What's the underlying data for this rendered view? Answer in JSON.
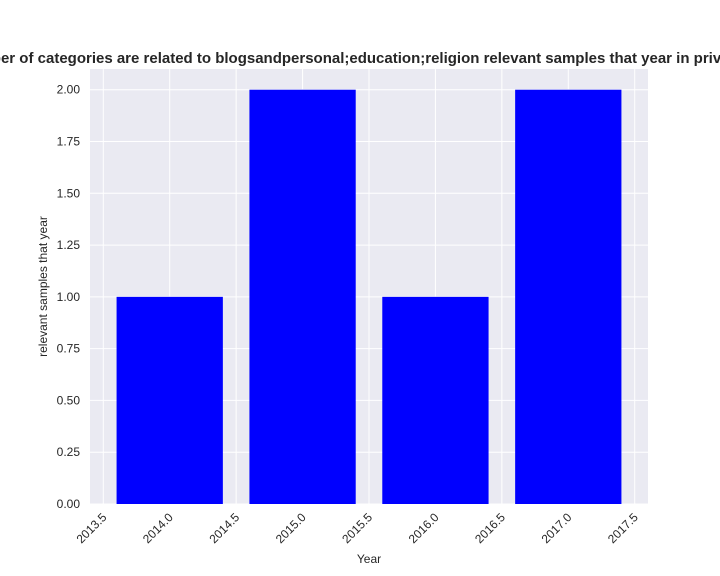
{
  "chart_data": {
    "type": "bar",
    "title": "Number of categories are related to blogsandpersonal;education;religion relevant samples that year in privacy p",
    "xlabel": "Year",
    "ylabel": "relevant samples that year",
    "x": [
      2014,
      2015,
      2016,
      2017
    ],
    "values": [
      1,
      2,
      1,
      2
    ],
    "bar_width": 0.8,
    "xlim": [
      2013.4,
      2017.6
    ],
    "ylim": [
      0,
      2.1
    ],
    "xticks": [
      2013.5,
      2014.0,
      2014.5,
      2015.0,
      2015.5,
      2016.0,
      2016.5,
      2017.0,
      2017.5
    ],
    "xtick_labels": [
      "2013.5",
      "2014.0",
      "2014.5",
      "2015.0",
      "2015.5",
      "2016.0",
      "2016.5",
      "2017.0",
      "2017.5"
    ],
    "yticks": [
      0,
      0.25,
      0.5,
      0.75,
      1.0,
      1.25,
      1.5,
      1.75,
      2.0
    ],
    "ytick_labels": [
      "0.00",
      "0.25",
      "0.50",
      "0.75",
      "1.00",
      "1.25",
      "1.50",
      "1.75",
      "2.00"
    ],
    "grid": true,
    "colors": {
      "bar": "#0000ff",
      "plot_background": "#eaeaf2",
      "grid": "#ffffff"
    }
  }
}
